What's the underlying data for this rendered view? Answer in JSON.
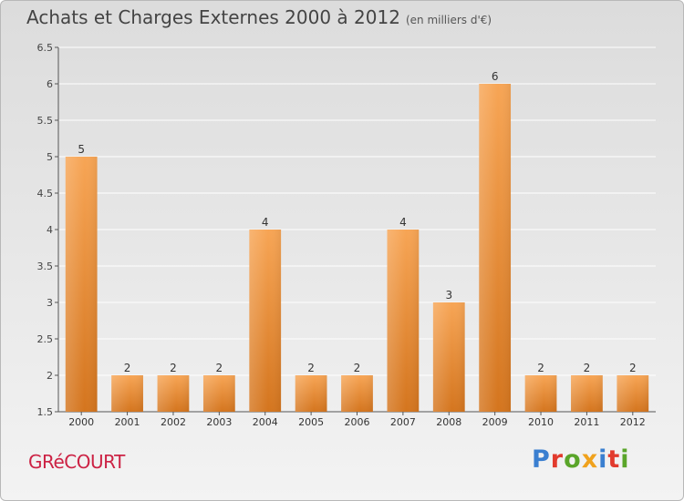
{
  "header": {
    "title": "Achats et Charges Externes 2000 à 2012",
    "unit": "(en milliers d'€)"
  },
  "footer": {
    "town": "GRéCOURT",
    "logo": "Proxiti"
  },
  "colors": {
    "bar_light": "#f7a555",
    "bar_dark": "#d4751e",
    "town": "#cc2244",
    "logo_letters": [
      "#3a7fd0",
      "#e23b2e",
      "#5aa52a",
      "#f0a21d",
      "#3a7fd0",
      "#e23b2e",
      "#5aa52a"
    ]
  },
  "chart_data": {
    "type": "bar",
    "categories": [
      "2000",
      "2001",
      "2002",
      "2003",
      "2004",
      "2005",
      "2006",
      "2007",
      "2008",
      "2009",
      "2010",
      "2011",
      "2012"
    ],
    "values": [
      5,
      2,
      2,
      2,
      4,
      2,
      2,
      4,
      3,
      6,
      2,
      2,
      2
    ],
    "data_labels": [
      "5",
      "2",
      "2",
      "2",
      "4",
      "2",
      "2",
      "4",
      "3",
      "6",
      "2",
      "2",
      "2"
    ],
    "ylim": [
      1.5,
      6.5
    ],
    "yticks": [
      "1.5",
      "2",
      "2.5",
      "3",
      "3.5",
      "4",
      "4.5",
      "5",
      "5.5",
      "6",
      "6.5"
    ],
    "ytick_values": [
      1.5,
      2,
      2.5,
      3,
      3.5,
      4,
      4.5,
      5,
      5.5,
      6,
      6.5
    ],
    "grid": true
  }
}
